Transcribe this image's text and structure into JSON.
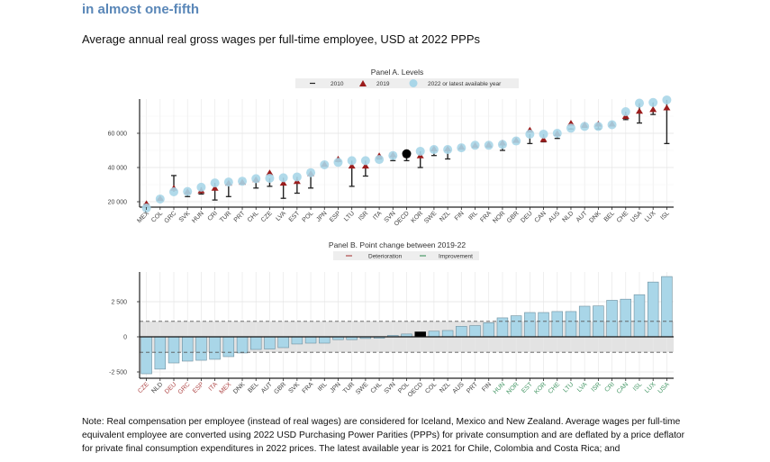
{
  "header": {
    "title_line2": "in almost one-fifth",
    "subtitle": "Average annual real gross wages per full-time employee, USD at 2022 PPPs"
  },
  "note": "Note: Real compensation per employee (instead of real wages) are considered for Iceland, Mexico and New Zealand. Average wages per full-time equivalent employee are converted using 2022 USD Purchasing Power Parities (PPPs) for private consumption and are deflated by a price deflator for private final consumption expenditures in 2022 prices. The latest available year is 2021 for Chile, Colombia and Costa Rica; and",
  "colors": {
    "circle_2022": "#a9d6e8",
    "triangle_2019": "#9b1c1c",
    "line_2010": "#222222",
    "oecd": "#000000",
    "bar": "#a9d6e8",
    "bar_stroke": "#6f8f9e",
    "band": "#d9d9d9",
    "deterioration": "#b04a4a",
    "improvement": "#4a9a6a",
    "neutral_label": "#444444"
  },
  "chart_data": [
    {
      "type": "scatter",
      "title": "Panel A. Levels",
      "xlabel": "",
      "ylabel": "",
      "ylim": [
        17000,
        80000
      ],
      "yticks": [
        20000,
        40000,
        60000
      ],
      "ytick_labels": [
        "20 000",
        "40 000",
        "60 000"
      ],
      "grid": true,
      "legend": {
        "placement": "top-center",
        "entries": [
          {
            "marker": "dash",
            "label": "2010"
          },
          {
            "marker": "triangle",
            "label": "2019"
          },
          {
            "marker": "circle",
            "label": "2022  or latest available year"
          }
        ]
      },
      "categories": [
        "MEX",
        "COL",
        "GRC",
        "SVK",
        "HUN",
        "CRI",
        "TUR",
        "PRT",
        "CHL",
        "CZE",
        "LVA",
        "EST",
        "POL",
        "JPN",
        "ESP",
        "LTU",
        "ISR",
        "ITA",
        "SVN",
        "OECD",
        "KOR",
        "SWE",
        "NZL",
        "FIN",
        "IRL",
        "FRA",
        "NOR",
        "GBR",
        "DEU",
        "CAN",
        "AUS",
        "NLD",
        "AUT",
        "DNK",
        "BEL",
        "CHE",
        "USA",
        "LUX",
        "ISL"
      ],
      "series": [
        {
          "name": "2010",
          "values": [
            18500,
            21500,
            35300,
            23000,
            24500,
            21000,
            23000,
            30500,
            28000,
            29000,
            22000,
            25000,
            28000,
            41000,
            43500,
            29000,
            35000,
            45000,
            44000,
            44000,
            40000,
            47000,
            45000,
            51000,
            52500,
            52000,
            50000,
            55000,
            54000,
            55000,
            57000,
            62500,
            63500,
            62500,
            64500,
            68000,
            66000,
            71000,
            54000
          ]
        },
        {
          "name": "2019",
          "values": [
            19000,
            22000,
            28000,
            26000,
            26500,
            28000,
            31000,
            31500,
            33000,
            37000,
            31000,
            32000,
            36500,
            42000,
            45000,
            41000,
            41000,
            47000,
            47500,
            47500,
            47000,
            51000,
            51000,
            52000,
            53000,
            53500,
            54500,
            56000,
            62000,
            56500,
            60000,
            66000,
            65000,
            65500,
            65500,
            70000,
            73000,
            74000,
            75000
          ]
        },
        {
          "name": "2022 or latest available year",
          "values": [
            16300,
            21600,
            25800,
            26000,
            28500,
            31000,
            31500,
            32000,
            33500,
            33700,
            34000,
            34500,
            37000,
            41600,
            43000,
            44000,
            44000,
            44700,
            47000,
            48000,
            49500,
            50500,
            50500,
            51500,
            53000,
            53000,
            53500,
            55500,
            59500,
            59500,
            60000,
            63000,
            64000,
            64000,
            65000,
            72600,
            77600,
            78000,
            79500
          ]
        }
      ]
    },
    {
      "type": "bar",
      "title": "Panel B. Point change between 2019-22",
      "xlabel": "",
      "ylabel": "",
      "ylim": [
        -2800,
        4700
      ],
      "yticks": [
        -2500,
        0,
        2500
      ],
      "ytick_labels": [
        "-2 500",
        "0",
        "2 500"
      ],
      "grid": true,
      "band": {
        "lower": -1100,
        "upper": 1100
      },
      "legend": {
        "placement": "top-center",
        "entries": [
          {
            "marker": "dash-red",
            "label": "Deterioration"
          },
          {
            "marker": "dash-green",
            "label": "Improvement"
          }
        ]
      },
      "categories": [
        "CZE",
        "NLD",
        "DEU",
        "GRC",
        "ESP",
        "ITA",
        "MEX",
        "DNK",
        "BEL",
        "AUT",
        "GBR",
        "SVK",
        "FRA",
        "IRL",
        "JPN",
        "TUR",
        "SWE",
        "CHL",
        "SVN",
        "POL",
        "OECD",
        "COL",
        "NZL",
        "AUS",
        "PRT",
        "FIN",
        "HUN",
        "NOR",
        "EST",
        "KOR",
        "CHE",
        "LTU",
        "LVA",
        "ISR",
        "CRI",
        "CAN",
        "ISL",
        "LUX",
        "USA"
      ],
      "label_status": [
        "det",
        "neu",
        "det",
        "det",
        "det",
        "det",
        "det",
        "neu",
        "neu",
        "neu",
        "neu",
        "neu",
        "neu",
        "neu",
        "neu",
        "neu",
        "neu",
        "neu",
        "neu",
        "neu",
        "neu",
        "neu",
        "neu",
        "neu",
        "neu",
        "neu",
        "imp",
        "imp",
        "imp",
        "imp",
        "imp",
        "imp",
        "imp",
        "imp",
        "imp",
        "imp",
        "imp",
        "imp",
        "imp"
      ],
      "values": [
        -2630,
        -2300,
        -1860,
        -1730,
        -1670,
        -1600,
        -1410,
        -1150,
        -900,
        -870,
        -770,
        -510,
        -450,
        -450,
        -200,
        -200,
        -120,
        -100,
        100,
        200,
        350,
        400,
        450,
        750,
        800,
        1000,
        1350,
        1500,
        1730,
        1730,
        1800,
        1800,
        2180,
        2200,
        2600,
        2680,
        3000,
        3900,
        4290
      ]
    }
  ]
}
